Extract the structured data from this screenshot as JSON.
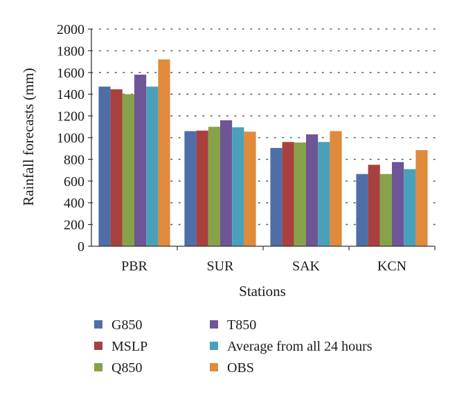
{
  "chart_data": {
    "type": "bar",
    "title": "",
    "xlabel": "Stations",
    "ylabel": "Rainfall forecasts (mm)",
    "ylim": [
      0,
      2000
    ],
    "yticks": [
      0,
      200,
      400,
      600,
      800,
      1000,
      1200,
      1400,
      1600,
      1800,
      2000
    ],
    "grid": "horizontal dotted",
    "legend_position": "bottom",
    "categories": [
      "PBR",
      "SUR",
      "SAK",
      "KCN"
    ],
    "series": [
      {
        "name": "G850",
        "color": "#4f6ea8",
        "values": [
          1470,
          1060,
          905,
          665
        ]
      },
      {
        "name": "MSLP",
        "color": "#a8413d",
        "values": [
          1445,
          1065,
          960,
          750
        ]
      },
      {
        "name": "Q850",
        "color": "#86a34a",
        "values": [
          1400,
          1100,
          955,
          665
        ]
      },
      {
        "name": "T850",
        "color": "#6e5596",
        "values": [
          1580,
          1160,
          1030,
          775
        ]
      },
      {
        "name": "Average from all 24 hours",
        "color": "#4ba0b9",
        "values": [
          1470,
          1095,
          960,
          710
        ]
      },
      {
        "name": "OBS",
        "color": "#e08a3c",
        "values": [
          1720,
          1055,
          1060,
          885
        ]
      }
    ]
  }
}
